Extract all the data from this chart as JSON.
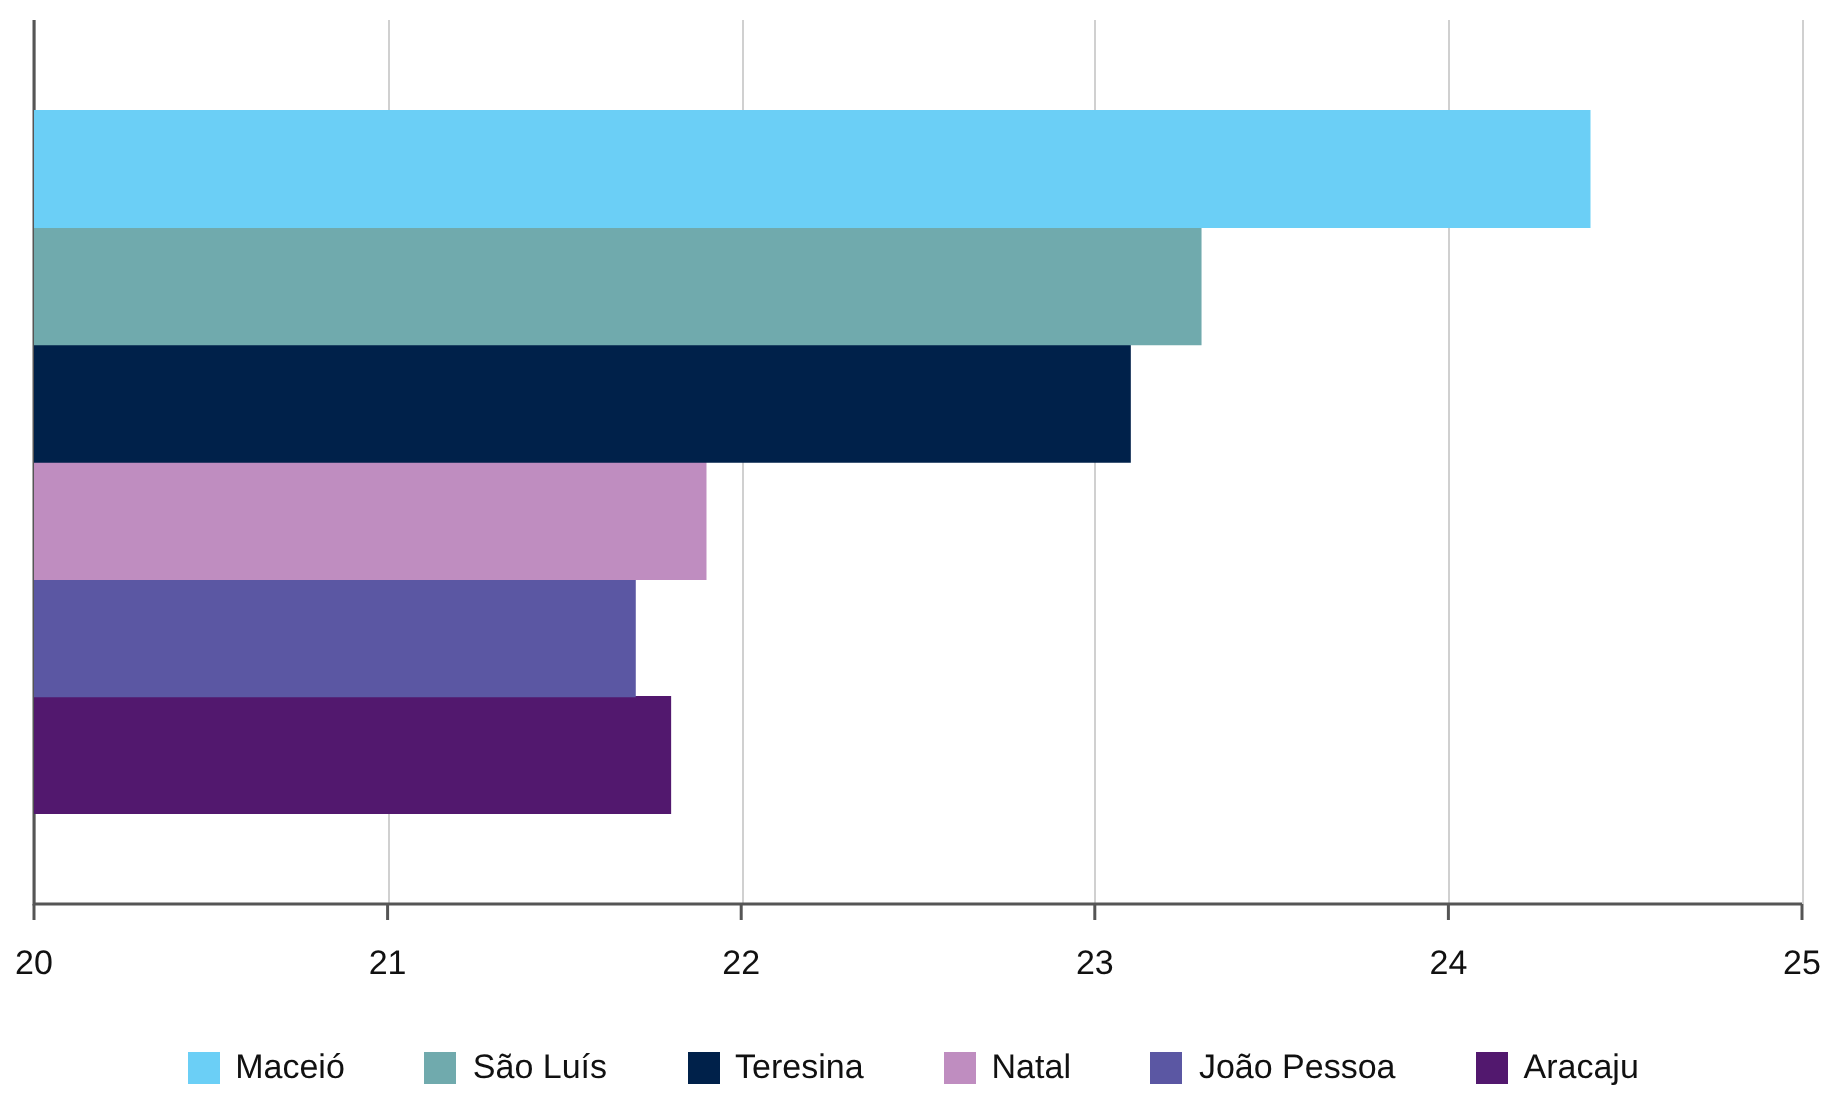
{
  "chart_data": {
    "type": "bar",
    "orientation": "horizontal",
    "categories": [
      null
    ],
    "series": [
      {
        "name": "Maceió",
        "color": "#6bcff6",
        "values": [
          24.4
        ]
      },
      {
        "name": "São Luís",
        "color": "#70aaad",
        "values": [
          23.3
        ]
      },
      {
        "name": "Teresina",
        "color": "#00214a",
        "values": [
          23.1
        ]
      },
      {
        "name": "Natal",
        "color": "#bf8dc0",
        "values": [
          21.9
        ]
      },
      {
        "name": "João Pessoa",
        "color": "#5b57a3",
        "values": [
          21.7
        ]
      },
      {
        "name": "Aracaju",
        "color": "#52186e",
        "values": [
          21.8
        ]
      }
    ],
    "xlim": [
      20,
      25
    ],
    "xticks": [
      20,
      21,
      22,
      23,
      24,
      25
    ],
    "grid": "x",
    "legend": "bottom"
  }
}
